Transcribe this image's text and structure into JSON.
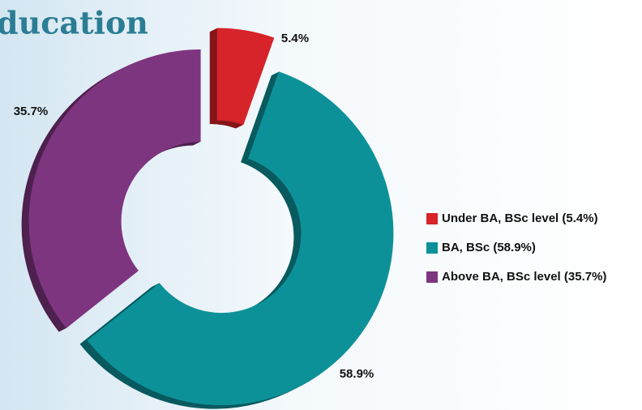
{
  "chart_data": {
    "type": "donut",
    "title": "ducation",
    "categories": [
      "Under BA, BSc level (5.4%)",
      "BA, BSc (58.9%)",
      "Above BA, BSc level (35.7%)"
    ],
    "values": [
      5.4,
      58.9,
      35.7
    ],
    "value_labels": [
      "5.4%",
      "58.9%",
      "35.7%"
    ],
    "colors": [
      "#d7232a",
      "#0d9199",
      "#7e3580"
    ],
    "legend": "right"
  }
}
